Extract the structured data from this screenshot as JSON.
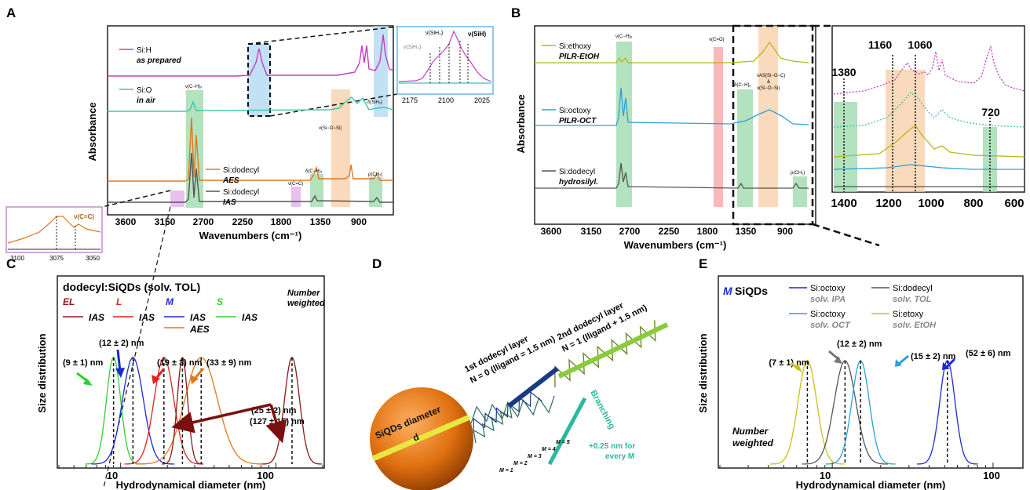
{
  "panels": {
    "A": {
      "letter": "A",
      "ylabel": "Absorbance",
      "xlabel": "Wavenumbers (cm⁻¹)",
      "xticks": [
        "3600",
        "3150",
        "2700",
        "2250",
        "1800",
        "1350",
        "900"
      ],
      "traces": [
        {
          "line1": "Si:H",
          "line2": "as prepared",
          "color": "#c040c0"
        },
        {
          "line1": "Si:O",
          "line2": "in air",
          "color": "#38c8b0"
        },
        {
          "line1": "Si:dodecyl",
          "line2": "AES",
          "color": "#e0781c"
        },
        {
          "line1": "Si:dodecyl",
          "line2": "IAS",
          "color": "#555555"
        }
      ],
      "annotations": {
        "ch": "ν(C−H)ₓ",
        "sio": "ν(Si−O−Si)",
        "dch": "δ(C−H)ₓ",
        "cc": "ν(C=C)",
        "rho": "ρ(CH₂)",
        "dsih": "δ(SiHₓ)"
      },
      "inset_sih": {
        "labels": [
          "ν(SiH₃)",
          "ν(SiH₂)",
          "ν(SiH)"
        ],
        "xticks": [
          "2175",
          "2100",
          "2025"
        ]
      },
      "inset_cc": {
        "label": "ν(C=C)",
        "xticks": [
          "3100",
          "3075",
          "3050"
        ]
      }
    },
    "B": {
      "letter": "B",
      "ylabel": "Absorbance",
      "xlabel": "Wavenumbers (cm⁻¹)",
      "xticks": [
        "3600",
        "3150",
        "2700",
        "2250",
        "1800",
        "1350",
        "900"
      ],
      "traces": [
        {
          "line1": "Si:ethoxy",
          "line2": "PILR-EtOH",
          "color": "#b8b818"
        },
        {
          "line1": "Si:octoxy",
          "line2": "PILR-OCT",
          "color": "#2aa0dc"
        },
        {
          "line1": "Si:dodecyl",
          "line2": "hydrosilyl.",
          "color": "#555555"
        }
      ],
      "annotations": {
        "ch": "ν(C−H)ₓ",
        "co": "ν(C=O)",
        "dch": "δ(C−H)ₓ",
        "as1": "νAS(Si−O−C)",
        "amp": "&",
        "as2": "ν(Si−O−Si)",
        "rho": "ρ(CH₂)"
      },
      "zoom": {
        "xticks": [
          "1400",
          "1200",
          "1000",
          "800",
          "600"
        ],
        "markers": [
          "1380",
          "1160",
          "1060",
          "720"
        ]
      }
    },
    "C": {
      "letter": "C",
      "title": "dodecyl:SiQDs (solv. TOL)",
      "weight1": "Number",
      "weight2": "weighted",
      "ylabel": "Size distribution",
      "xlabel": "Hydrodynamical diameter (nm)",
      "xticks": [
        "10",
        "100"
      ],
      "legend_sizes": [
        {
          "label": "EL",
          "color": "#8b1a1a"
        },
        {
          "label": "L",
          "color": "#e02020"
        },
        {
          "label": "M",
          "color": "#1c2ad0"
        },
        {
          "label": "S",
          "color": "#30d030"
        }
      ],
      "legend_series": [
        "IAS",
        "IAS",
        "IAS",
        "IAS",
        "AES"
      ],
      "values": [
        "(9 ± 1) nm",
        "(12 ± 2) nm",
        "(19 ± 3) nm",
        "(33 ± 9) nm",
        "(25 ± 2) nm",
        "(127 ± 15) nm"
      ]
    },
    "D": {
      "letter": "D",
      "layer1a": "1st dodecyl layer",
      "layer1b": "N = 0 (lligand = 1.5 nm)",
      "layer2a": "2nd dodecyl layer",
      "layer2b": "N = 1 (lligand + 1.5 nm)",
      "diameter1": "SiQDs diameter",
      "diameter2": "d",
      "branching": "Branching",
      "plus1": "+0.25 nm for",
      "plus2": "every M",
      "m_labels": [
        "M = 1",
        "M = 2",
        "M = 3",
        "M = 4",
        "M = 5"
      ]
    },
    "E": {
      "letter": "E",
      "title_m": "M",
      "title_rest": "SiQDs",
      "weight1": "Number",
      "weight2": "weighted",
      "ylabel": "Size distribution",
      "xlabel": "Hydrodynamical diameter (nm)",
      "xticks": [
        "10",
        "100"
      ],
      "legend": [
        {
          "l1": "Si:octoxy",
          "l2": "solv. IPA",
          "color": "#1c2ad0"
        },
        {
          "l1": "Si:dodecyl",
          "l2": "solv. TOL",
          "color": "#555555"
        },
        {
          "l1": "Si:octoxy",
          "l2": "solv. OCT",
          "color": "#2aa0dc"
        },
        {
          "l1": "Si:etoxy",
          "l2": "solv. EtOH",
          "color": "#c8c018"
        }
      ],
      "values": [
        "(7 ± 1) nm",
        "(12 ± 2) nm",
        "(15 ± 2) nm",
        "(52 ± 6) nm"
      ]
    }
  },
  "chart_data": [
    {
      "type": "line",
      "panel": "C",
      "xlabel": "Hydrodynamical diameter (nm)",
      "ylabel": "Size distribution",
      "xscale": "log",
      "xlim": [
        4,
        200
      ],
      "series": [
        {
          "name": "S IAS",
          "color": "#30d030",
          "mean": 9,
          "sd": 1
        },
        {
          "name": "M IAS",
          "color": "#1c2ad0",
          "mean": 12,
          "sd": 2
        },
        {
          "name": "L IAS",
          "color": "#e02020",
          "mean": 19,
          "sd": 3
        },
        {
          "name": "M AES",
          "color": "#e0781c",
          "mean": 33,
          "sd": 9
        },
        {
          "name": "EL IAS",
          "color": "#8b1a1a",
          "mean": 25,
          "sd": 2
        },
        {
          "name": "EL IAS",
          "color": "#8b1a1a",
          "mean": 127,
          "sd": 15
        }
      ]
    },
    {
      "type": "line",
      "panel": "E",
      "xlabel": "Hydrodynamical diameter (nm)",
      "ylabel": "Size distribution",
      "xscale": "log",
      "xlim": [
        2,
        150
      ],
      "series": [
        {
          "name": "Si:etoxy solv. EtOH",
          "color": "#c8c018",
          "mean": 7,
          "sd": 1
        },
        {
          "name": "Si:dodecyl solv. TOL",
          "color": "#555555",
          "mean": 12,
          "sd": 2
        },
        {
          "name": "Si:octoxy solv. OCT",
          "color": "#2aa0dc",
          "mean": 15,
          "sd": 2
        },
        {
          "name": "Si:octoxy solv. IPA",
          "color": "#1c2ad0",
          "mean": 52,
          "sd": 6
        }
      ]
    }
  ]
}
